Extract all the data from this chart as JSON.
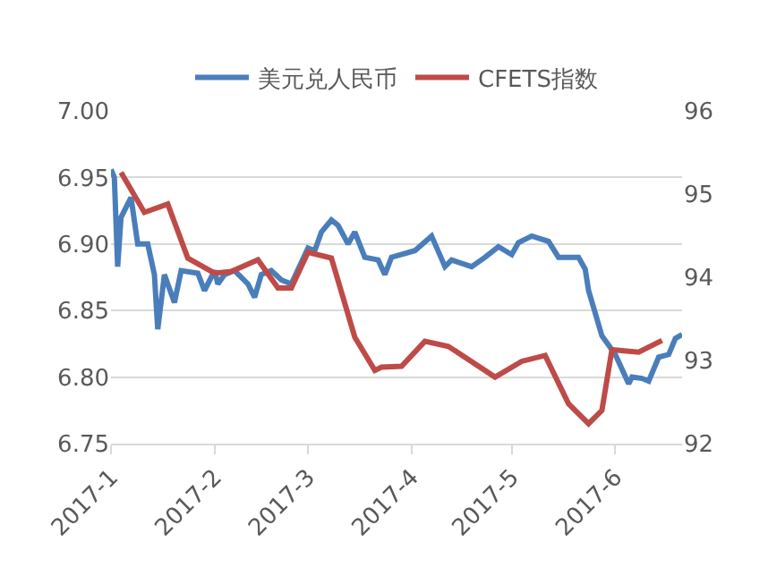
{
  "chart_data": {
    "type": "line",
    "series": [
      {
        "name": "美元兑人民币",
        "color": "#4a7ebb",
        "x": [
          "2017-01-01",
          "2017-01-02",
          "2017-01-03",
          "2017-01-04",
          "2017-01-06",
          "2017-01-07",
          "2017-01-09",
          "2017-01-12",
          "2017-01-14",
          "2017-01-15",
          "2017-01-17",
          "2017-01-18",
          "2017-01-20",
          "2017-01-22",
          "2017-01-27",
          "2017-01-29",
          "2017-02-01",
          "2017-02-02",
          "2017-02-04",
          "2017-02-07",
          "2017-02-11",
          "2017-02-13",
          "2017-02-15",
          "2017-02-18",
          "2017-02-21",
          "2017-02-24",
          "2017-03-01",
          "2017-03-03",
          "2017-03-05",
          "2017-03-08",
          "2017-03-10",
          "2017-03-13",
          "2017-03-15",
          "2017-03-18",
          "2017-03-22",
          "2017-03-24",
          "2017-03-26",
          "2017-04-02",
          "2017-04-07",
          "2017-04-11",
          "2017-04-13",
          "2017-04-19",
          "2017-04-23",
          "2017-04-27",
          "2017-05-01",
          "2017-05-03",
          "2017-05-07",
          "2017-05-12",
          "2017-05-15",
          "2017-05-21",
          "2017-05-23",
          "2017-05-24",
          "2017-05-28",
          "2017-06-01",
          "2017-06-05",
          "2017-06-06",
          "2017-06-09",
          "2017-06-11",
          "2017-06-14",
          "2017-06-17",
          "2017-06-19",
          "2017-06-21"
        ],
        "values": [
          6.956,
          6.95,
          6.883,
          6.92,
          6.93,
          6.935,
          6.9,
          6.9,
          6.877,
          6.836,
          6.877,
          6.87,
          6.856,
          6.88,
          6.878,
          6.865,
          6.88,
          6.87,
          6.877,
          6.88,
          6.87,
          6.86,
          6.877,
          6.88,
          6.873,
          6.87,
          6.897,
          6.895,
          6.909,
          6.918,
          6.914,
          6.9,
          6.909,
          6.89,
          6.888,
          6.877,
          6.89,
          6.895,
          6.906,
          6.883,
          6.888,
          6.883,
          6.89,
          6.898,
          6.892,
          6.901,
          6.906,
          6.902,
          6.89,
          6.89,
          6.881,
          6.865,
          6.831,
          6.817,
          6.795,
          6.8,
          6.799,
          6.797,
          6.815,
          6.817,
          6.829,
          6.832
        ]
      },
      {
        "name": "CFETS指数",
        "color": "#be4b48",
        "axis": "y2",
        "x": [
          "2017-01-04",
          "2017-01-11",
          "2017-01-18",
          "2017-01-24",
          "2017-02-01",
          "2017-02-06",
          "2017-02-14",
          "2017-02-20",
          "2017-02-24",
          "2017-03-01",
          "2017-03-08",
          "2017-03-15",
          "2017-03-21",
          "2017-03-23",
          "2017-03-29",
          "2017-04-05",
          "2017-04-12",
          "2017-04-26",
          "2017-05-04",
          "2017-05-11",
          "2017-05-18",
          "2017-05-24",
          "2017-05-28",
          "2017-05-31",
          "2017-06-08",
          "2017-06-15"
        ],
        "values": [
          95.26,
          94.78,
          94.88,
          94.23,
          94.05,
          94.07,
          94.21,
          93.87,
          93.87,
          94.3,
          94.23,
          93.28,
          92.88,
          92.92,
          92.93,
          93.23,
          93.17,
          92.8,
          92.99,
          93.06,
          92.48,
          92.24,
          92.4,
          93.13,
          93.1,
          93.24
        ]
      }
    ],
    "xlim": [
      "2017-01-01",
      "2017-06-21"
    ],
    "xticks": [
      {
        "value": "2017-01-01",
        "label": "2017-1"
      },
      {
        "value": "2017-02-01",
        "label": "2017-2"
      },
      {
        "value": "2017-03-01",
        "label": "2017-3"
      },
      {
        "value": "2017-04-01",
        "label": "2017-4"
      },
      {
        "value": "2017-05-01",
        "label": "2017-5"
      },
      {
        "value": "2017-06-01",
        "label": "2017-6"
      }
    ],
    "ylim": [
      6.75,
      7.0
    ],
    "yticks": [
      {
        "value": 6.75,
        "label": "6.75"
      },
      {
        "value": 6.8,
        "label": "6.80"
      },
      {
        "value": 6.85,
        "label": "6.85"
      },
      {
        "value": 6.9,
        "label": "6.90"
      },
      {
        "value": 6.95,
        "label": "6.95"
      },
      {
        "value": 7.0,
        "label": "7.00"
      }
    ],
    "y2lim": [
      92,
      96
    ],
    "y2ticks": [
      92,
      93,
      94,
      95,
      96
    ],
    "grid": "y",
    "legend": "top",
    "line_style": "solid",
    "marker": "none"
  }
}
